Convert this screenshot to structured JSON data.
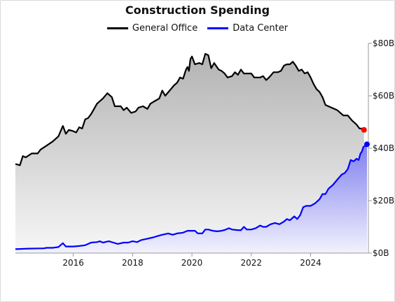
{
  "chart_data": {
    "type": "area",
    "title": "Construction Spending",
    "xlabel": "",
    "ylabel": "",
    "x_ticks": [
      "2016",
      "2018",
      "2020",
      "2022",
      "2024"
    ],
    "x_tick_values": [
      2016,
      2018,
      2020,
      2022,
      2024
    ],
    "xlim": [
      2014.05,
      2025.9
    ],
    "y_ticks": [
      "$0B",
      "$20B",
      "$40B",
      "$60B",
      "$80B"
    ],
    "y_tick_values": [
      0,
      20,
      40,
      60,
      80
    ],
    "ylim": [
      0,
      80
    ],
    "legend_position": "top-center",
    "grid": false,
    "series": [
      {
        "name": "General Office",
        "color": "#000000",
        "end_marker_color": "#ff0000",
        "points": [
          [
            2014.05,
            34
          ],
          [
            2014.2,
            33.5
          ],
          [
            2014.3,
            37
          ],
          [
            2014.4,
            36.5
          ],
          [
            2014.6,
            38
          ],
          [
            2014.8,
            38
          ],
          [
            2014.9,
            39.5
          ],
          [
            2015.1,
            41
          ],
          [
            2015.3,
            42.5
          ],
          [
            2015.5,
            44.5
          ],
          [
            2015.65,
            48.5
          ],
          [
            2015.75,
            45.5
          ],
          [
            2015.85,
            47
          ],
          [
            2016.0,
            46.5
          ],
          [
            2016.1,
            46
          ],
          [
            2016.2,
            48
          ],
          [
            2016.3,
            47.5
          ],
          [
            2016.4,
            51
          ],
          [
            2016.5,
            51.5
          ],
          [
            2016.6,
            53
          ],
          [
            2016.7,
            55
          ],
          [
            2016.8,
            57
          ],
          [
            2017.0,
            59
          ],
          [
            2017.15,
            61
          ],
          [
            2017.3,
            59.5
          ],
          [
            2017.4,
            56
          ],
          [
            2017.6,
            56
          ],
          [
            2017.7,
            54.5
          ],
          [
            2017.8,
            55.5
          ],
          [
            2017.95,
            53.5
          ],
          [
            2018.1,
            54
          ],
          [
            2018.2,
            55.5
          ],
          [
            2018.35,
            56
          ],
          [
            2018.5,
            55
          ],
          [
            2018.6,
            57
          ],
          [
            2018.75,
            58
          ],
          [
            2018.9,
            59
          ],
          [
            2019.0,
            62
          ],
          [
            2019.1,
            60
          ],
          [
            2019.25,
            62
          ],
          [
            2019.4,
            64
          ],
          [
            2019.5,
            65
          ],
          [
            2019.6,
            67
          ],
          [
            2019.7,
            66.5
          ],
          [
            2019.8,
            70
          ],
          [
            2019.85,
            71
          ],
          [
            2019.9,
            69.5
          ],
          [
            2019.95,
            74
          ],
          [
            2020.0,
            75
          ],
          [
            2020.1,
            72
          ],
          [
            2020.25,
            72.5
          ],
          [
            2020.35,
            72
          ],
          [
            2020.45,
            76
          ],
          [
            2020.55,
            75.5
          ],
          [
            2020.65,
            70.5
          ],
          [
            2020.75,
            72.5
          ],
          [
            2020.9,
            70
          ],
          [
            2021.0,
            69.5
          ],
          [
            2021.1,
            68.5
          ],
          [
            2021.2,
            67
          ],
          [
            2021.35,
            67.5
          ],
          [
            2021.45,
            69
          ],
          [
            2021.55,
            68
          ],
          [
            2021.65,
            70
          ],
          [
            2021.75,
            68.5
          ],
          [
            2021.85,
            68.5
          ],
          [
            2022.0,
            68.5
          ],
          [
            2022.1,
            67
          ],
          [
            2022.3,
            67
          ],
          [
            2022.4,
            67.5
          ],
          [
            2022.5,
            66
          ],
          [
            2022.6,
            67
          ],
          [
            2022.75,
            69
          ],
          [
            2022.9,
            69
          ],
          [
            2023.0,
            69.5
          ],
          [
            2023.1,
            71.5
          ],
          [
            2023.2,
            72
          ],
          [
            2023.3,
            72
          ],
          [
            2023.4,
            73
          ],
          [
            2023.5,
            71.5
          ],
          [
            2023.6,
            69.5
          ],
          [
            2023.7,
            70
          ],
          [
            2023.8,
            68.5
          ],
          [
            2023.9,
            69
          ],
          [
            2024.0,
            67
          ],
          [
            2024.1,
            64.5
          ],
          [
            2024.2,
            62.5
          ],
          [
            2024.3,
            61.5
          ],
          [
            2024.4,
            59.5
          ],
          [
            2024.5,
            56.5
          ],
          [
            2024.6,
            56
          ],
          [
            2024.8,
            55
          ],
          [
            2024.9,
            54.5
          ],
          [
            2025.0,
            53.5
          ],
          [
            2025.1,
            52.5
          ],
          [
            2025.25,
            52.5
          ],
          [
            2025.4,
            50.5
          ],
          [
            2025.55,
            49
          ],
          [
            2025.65,
            47.5
          ],
          [
            2025.75,
            47.5
          ],
          [
            2025.8,
            47
          ]
        ]
      },
      {
        "name": "Data Center",
        "color": "#0000ff",
        "end_marker_color": "#0000ff",
        "points": [
          [
            2014.05,
            1.5
          ],
          [
            2014.5,
            1.7
          ],
          [
            2014.9,
            1.8
          ],
          [
            2015.0,
            1.8
          ],
          [
            2015.1,
            2.0
          ],
          [
            2015.3,
            2.0
          ],
          [
            2015.5,
            2.3
          ],
          [
            2015.65,
            3.8
          ],
          [
            2015.75,
            2.5
          ],
          [
            2016.0,
            2.5
          ],
          [
            2016.2,
            2.7
          ],
          [
            2016.4,
            3.0
          ],
          [
            2016.6,
            4.0
          ],
          [
            2016.8,
            4.2
          ],
          [
            2016.9,
            4.5
          ],
          [
            2017.0,
            4.0
          ],
          [
            2017.2,
            4.5
          ],
          [
            2017.35,
            4.0
          ],
          [
            2017.5,
            3.5
          ],
          [
            2017.7,
            4.0
          ],
          [
            2017.85,
            4.0
          ],
          [
            2018.0,
            4.5
          ],
          [
            2018.15,
            4.2
          ],
          [
            2018.3,
            5.0
          ],
          [
            2018.5,
            5.5
          ],
          [
            2018.7,
            6.0
          ],
          [
            2018.85,
            6.5
          ],
          [
            2019.0,
            7.0
          ],
          [
            2019.2,
            7.5
          ],
          [
            2019.35,
            7.0
          ],
          [
            2019.5,
            7.5
          ],
          [
            2019.7,
            7.8
          ],
          [
            2019.85,
            8.5
          ],
          [
            2020.0,
            8.5
          ],
          [
            2020.1,
            8.5
          ],
          [
            2020.2,
            7.5
          ],
          [
            2020.35,
            7.5
          ],
          [
            2020.45,
            9.0
          ],
          [
            2020.55,
            9.0
          ],
          [
            2020.7,
            8.5
          ],
          [
            2020.85,
            8.3
          ],
          [
            2021.0,
            8.5
          ],
          [
            2021.1,
            8.8
          ],
          [
            2021.25,
            9.5
          ],
          [
            2021.35,
            9.0
          ],
          [
            2021.5,
            8.8
          ],
          [
            2021.65,
            8.7
          ],
          [
            2021.75,
            10.0
          ],
          [
            2021.85,
            9.0
          ],
          [
            2022.0,
            9.0
          ],
          [
            2022.15,
            9.5
          ],
          [
            2022.3,
            10.5
          ],
          [
            2022.4,
            10.0
          ],
          [
            2022.5,
            10.0
          ],
          [
            2022.65,
            11.0
          ],
          [
            2022.8,
            11.5
          ],
          [
            2022.95,
            11.0
          ],
          [
            2023.1,
            12.0
          ],
          [
            2023.2,
            13.0
          ],
          [
            2023.3,
            12.5
          ],
          [
            2023.45,
            14.0
          ],
          [
            2023.55,
            13.0
          ],
          [
            2023.65,
            14.5
          ],
          [
            2023.75,
            17.5
          ],
          [
            2023.85,
            18.0
          ],
          [
            2024.0,
            18.0
          ],
          [
            2024.15,
            19.0
          ],
          [
            2024.3,
            20.5
          ],
          [
            2024.4,
            22.5
          ],
          [
            2024.5,
            22.5
          ],
          [
            2024.6,
            24.5
          ],
          [
            2024.75,
            26.0
          ],
          [
            2024.9,
            28.0
          ],
          [
            2025.05,
            30.0
          ],
          [
            2025.15,
            30.5
          ],
          [
            2025.25,
            32.0
          ],
          [
            2025.35,
            35.5
          ],
          [
            2025.45,
            35.0
          ],
          [
            2025.55,
            36.0
          ],
          [
            2025.62,
            35.5
          ],
          [
            2025.68,
            38.0
          ],
          [
            2025.72,
            38.5
          ],
          [
            2025.78,
            40.5
          ],
          [
            2025.85,
            41.0
          ],
          [
            2025.9,
            41.5
          ]
        ]
      }
    ]
  }
}
